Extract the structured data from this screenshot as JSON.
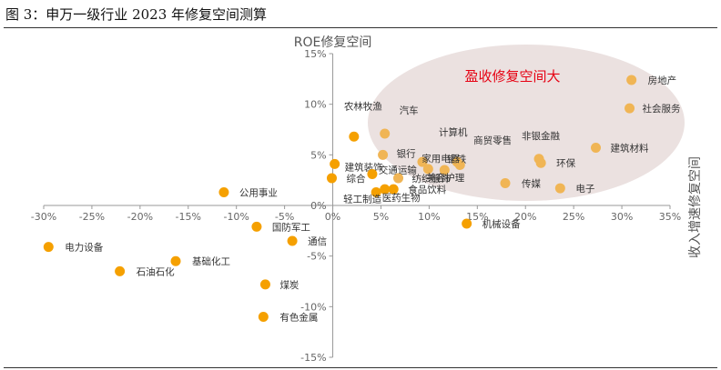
{
  "figure": {
    "title": "图 3：申万一级行业 2023 年修复空间测算"
  },
  "colors": {
    "point_strong": "#F5A000",
    "point_faded": "#F0B555",
    "ellipse_fill": "#EBE1E0",
    "callout": "#E60012",
    "axis": "#999999"
  },
  "chart_data": {
    "type": "scatter",
    "xlabel": "收入增速修复空间",
    "ylabel": "ROE修复空间",
    "xlim": [
      -0.3,
      0.35
    ],
    "ylim": [
      -0.15,
      0.15
    ],
    "x_ticks": [
      "-30%",
      "-25%",
      "-20%",
      "-15%",
      "-10%",
      "-5%",
      "0%",
      "5%",
      "10%",
      "15%",
      "20%",
      "25%",
      "30%",
      "35%"
    ],
    "y_ticks": [
      "-15%",
      "-10%",
      "-5%",
      "0%",
      "5%",
      "10%",
      "15%"
    ],
    "annotation": "盈收修复空间大",
    "points": [
      {
        "label": "房地产",
        "x": 0.31,
        "y": 0.124
      },
      {
        "label": "社会服务",
        "x": 0.308,
        "y": 0.096
      },
      {
        "label": "建筑材料",
        "x": 0.273,
        "y": 0.057
      },
      {
        "label": "非银金融",
        "x": 0.214,
        "y": 0.046
      },
      {
        "label": "环保",
        "x": 0.216,
        "y": 0.042
      },
      {
        "label": "电子",
        "x": 0.236,
        "y": 0.017
      },
      {
        "label": "传媒",
        "x": 0.179,
        "y": 0.022
      },
      {
        "label": "钢铁",
        "x": 0.132,
        "y": 0.04
      },
      {
        "label": "商贸零售",
        "x": 0.129,
        "y": 0.043
      },
      {
        "label": "计算机",
        "x": 0.093,
        "y": 0.043
      },
      {
        "label": "家用电器",
        "x": 0.099,
        "y": 0.036
      },
      {
        "label": "美容护理",
        "x": 0.116,
        "y": 0.035
      },
      {
        "label": "汽车",
        "x": 0.054,
        "y": 0.071
      },
      {
        "label": "银行",
        "x": 0.052,
        "y": 0.05
      },
      {
        "label": "农林牧渔",
        "x": 0.022,
        "y": 0.068
      },
      {
        "label": "建筑装饰",
        "x": 0.002,
        "y": 0.041
      },
      {
        "label": "交通运输",
        "x": 0.041,
        "y": 0.031
      },
      {
        "label": "综合",
        "x": -0.001,
        "y": 0.027
      },
      {
        "label": "纺织服饰",
        "x": 0.068,
        "y": 0.027
      },
      {
        "label": "食品饮料",
        "x": 0.063,
        "y": 0.016
      },
      {
        "label": "轻工制造",
        "x": 0.045,
        "y": 0.013
      },
      {
        "label": "医药生物",
        "x": 0.054,
        "y": 0.016
      },
      {
        "label": "公用事业",
        "x": -0.113,
        "y": 0.013
      },
      {
        "label": "机械设备",
        "x": 0.139,
        "y": -0.018
      },
      {
        "label": "国防军工",
        "x": -0.079,
        "y": -0.021
      },
      {
        "label": "通信",
        "x": -0.042,
        "y": -0.035
      },
      {
        "label": "电力设备",
        "x": -0.295,
        "y": -0.041
      },
      {
        "label": "基础化工",
        "x": -0.163,
        "y": -0.055
      },
      {
        "label": "石油石化",
        "x": -0.221,
        "y": -0.065
      },
      {
        "label": "煤炭",
        "x": -0.07,
        "y": -0.078
      },
      {
        "label": "有色金属",
        "x": -0.072,
        "y": -0.11
      }
    ]
  }
}
